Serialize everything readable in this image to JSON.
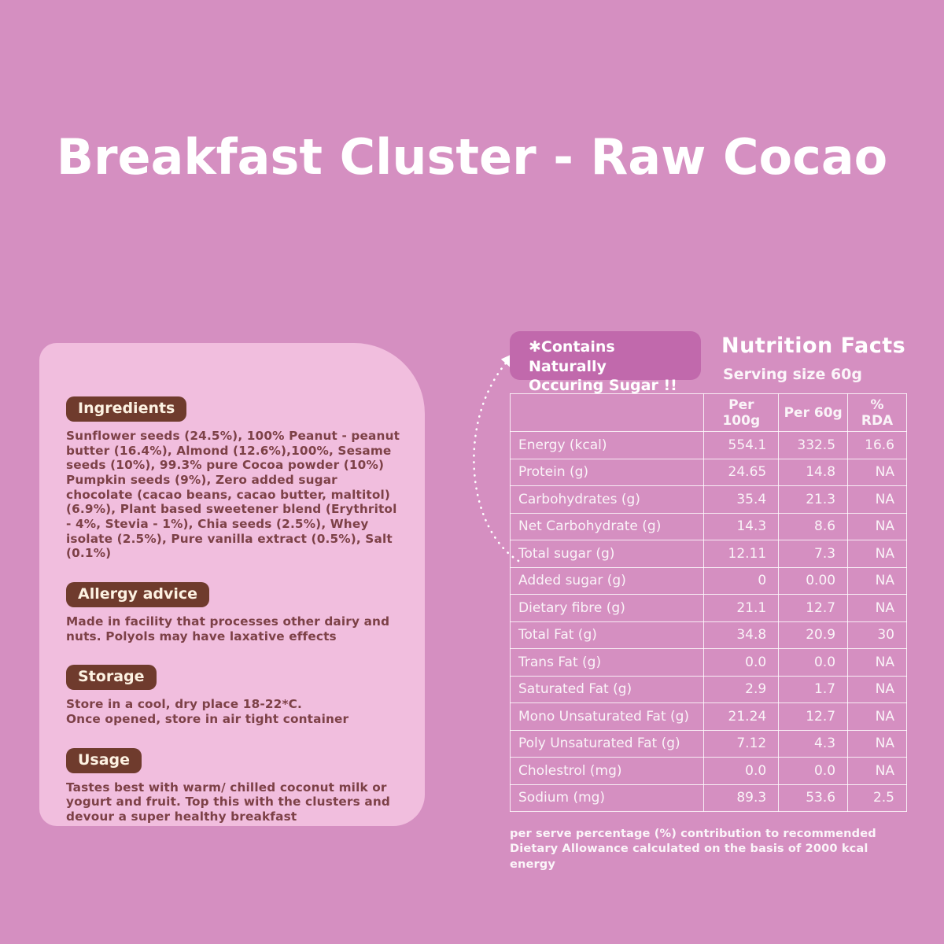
{
  "title": "Breakfast Cluster - Raw Cocao",
  "colors": {
    "background": "#d58fc1",
    "panel": "#f1bede",
    "section_badge": "#6f3b2d",
    "section_badge_text": "#fdf2e2",
    "body_text": "#7d4147",
    "sugar_badge": "#c169ac",
    "table_text": "#faf4f8",
    "table_border": "#ffffff"
  },
  "info_panel": {
    "sections": [
      {
        "label": "Ingredients",
        "body": "Sunflower seeds (24.5%), 100% Peanut - peanut butter (16.4%), Almond (12.6%),100%,  Sesame seeds (10%), 99.3% pure Cocoa powder (10%) Pumpkin seeds (9%), Zero added sugar chocolate (cacao beans, cacao butter, maltitol) (6.9%), Plant based sweetener blend (Erythritol - 4%, Stevia - 1%), Chia seeds (2.5%), Whey isolate (2.5%), Pure vanilla extract (0.5%), Salt (0.1%)"
      },
      {
        "label": "Allergy advice",
        "body": "Made in facility that processes other dairy and nuts. Polyols may have laxative effects"
      },
      {
        "label": "Storage",
        "body": "Store in a cool, dry place 18-22*C.\nOnce opened, store in air tight container"
      },
      {
        "label": "Usage",
        "body": "Tastes best with warm/ chilled coconut milk or yogurt and fruit. Top this with the clusters and devour a super healthy breakfast"
      }
    ]
  },
  "nutrition": {
    "badge": {
      "line1": "✱Contains Naturally",
      "line2": "Occuring Sugar !!"
    },
    "heading": "Nutrition Facts",
    "serving": "Serving size 60g",
    "table": {
      "columns": [
        "",
        "Per 100g",
        "Per 60g",
        "% RDA"
      ],
      "rows": [
        [
          "Energy (kcal)",
          "554.1",
          "332.5",
          "16.6"
        ],
        [
          "Protein (g)",
          "24.65",
          "14.8",
          "NA"
        ],
        [
          "Carbohydrates (g)",
          "35.4",
          "21.3",
          "NA"
        ],
        [
          "Net Carbohydrate (g)",
          "14.3",
          "8.6",
          "NA"
        ],
        [
          "Total sugar (g)",
          "12.11",
          "7.3",
          "NA"
        ],
        [
          "Added sugar (g)",
          "0",
          "0.00",
          "NA"
        ],
        [
          "Dietary fibre (g)",
          "21.1",
          "12.7",
          "NA"
        ],
        [
          "Total Fat (g)",
          "34.8",
          "20.9",
          "30"
        ],
        [
          "Trans Fat (g)",
          "0.0",
          "0.0",
          "NA"
        ],
        [
          "Saturated Fat (g)",
          "2.9",
          "1.7",
          "NA"
        ],
        [
          "Mono Unsaturated Fat (g)",
          "21.24",
          "12.7",
          "NA"
        ],
        [
          "Poly Unsaturated Fat (g)",
          "7.12",
          "4.3",
          "NA"
        ],
        [
          "Cholestrol (mg)",
          "0.0",
          "0.0",
          "NA"
        ],
        [
          "Sodium (mg)",
          "89.3",
          "53.6",
          "2.5"
        ]
      ]
    },
    "footnote": "per serve percentage (%) contribution to recommended Dietary Allowance calculated on the basis of 2000 kcal energy"
  }
}
